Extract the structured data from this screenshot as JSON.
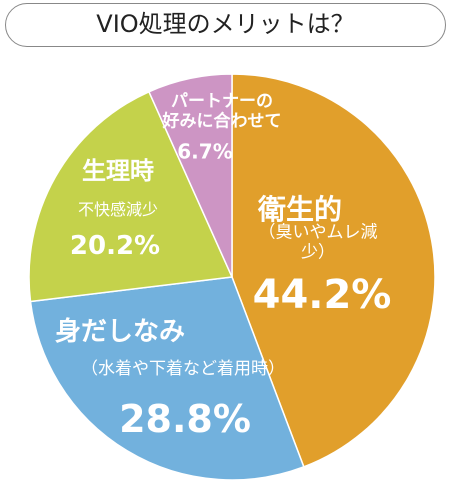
{
  "chart_data": {
    "type": "pie",
    "title": "VIO処理のメリットは？",
    "categories": [
      "衛生的",
      "身だしなみ",
      "生理時",
      "パートナーの\n好みに合わせて"
    ],
    "sublabels": [
      "（臭いやムレ減少）",
      "（水着や下着など着用時）",
      "不快感減少",
      null
    ],
    "values": [
      44.2,
      28.8,
      20.2,
      6.7
    ],
    "value_labels": [
      "44.2%",
      "28.8%",
      "20.2%",
      "6.7%"
    ],
    "colors": [
      "#e19f2b",
      "#72b1dd",
      "#c4d24b",
      "#cd95c4"
    ]
  }
}
